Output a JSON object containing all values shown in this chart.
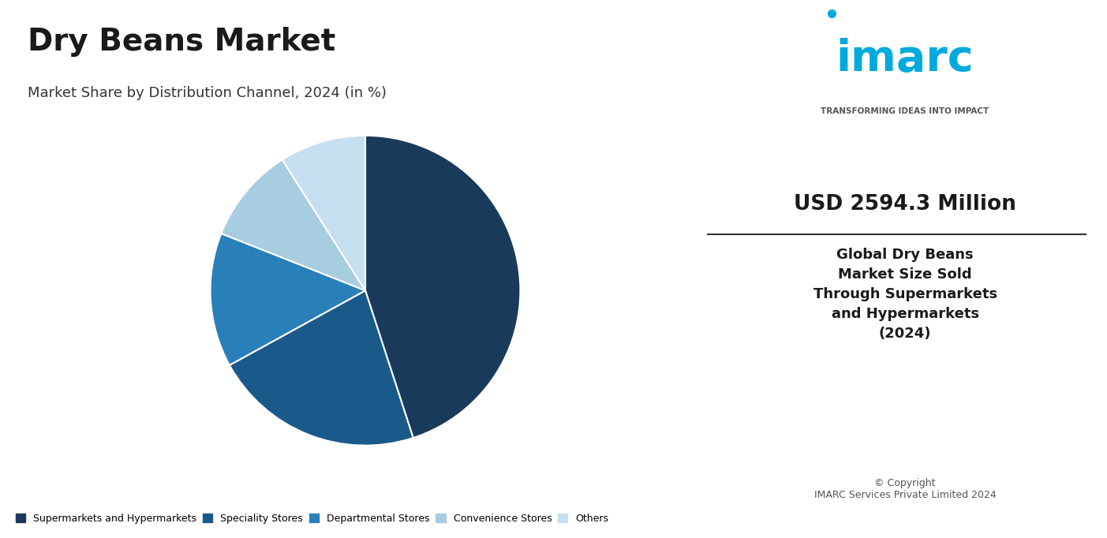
{
  "title": "Dry Beans Market",
  "subtitle": "Market Share by Distribution Channel, 2024 (in %)",
  "bg_color_left": "#d6e4f0",
  "bg_color_right": "#ffffff",
  "pie_data": [
    45,
    22,
    14,
    10,
    9
  ],
  "pie_labels": [
    "Supermarkets and Hypermarkets",
    "Speciality Stores",
    "Departmental Stores",
    "Convenience Stores",
    "Others"
  ],
  "pie_colors": [
    "#1a3a5c",
    "#1a5a8a",
    "#2980b9",
    "#a8cce0",
    "#c5dff0"
  ],
  "legend_colors": [
    "#1a3a5c",
    "#1a5a8a",
    "#2980b9",
    "#a8cce0",
    "#c5dff0"
  ],
  "usd_value": "USD 2594.3 Million",
  "usd_desc": "Global Dry Beans\nMarket Size Sold\nThrough Supermarkets\nand Hypermarkets\n(2024)",
  "copyright": "© Copyright\nIMARC Services Private Limited 2024",
  "imarc_tagline": "TRANSFORMING IDEAS INTO IMPACT",
  "imarc_logo": "imarc"
}
